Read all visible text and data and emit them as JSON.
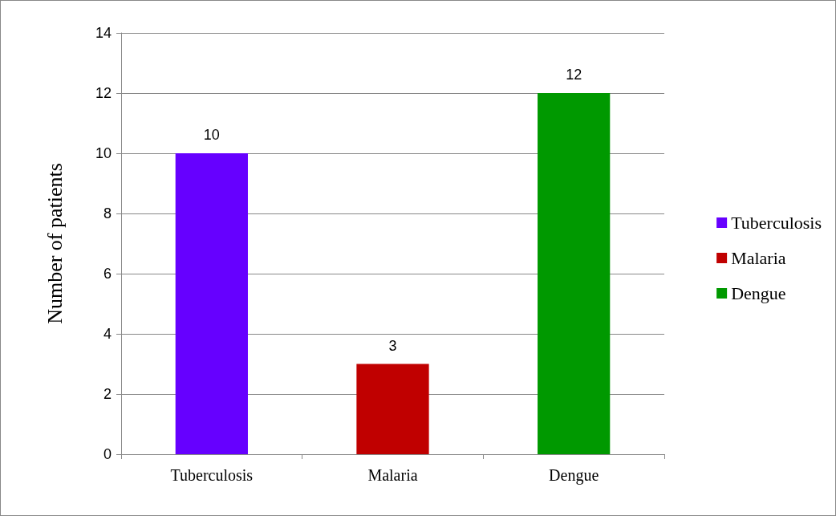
{
  "chart_data": {
    "type": "bar",
    "ylabel": "Number of patients",
    "categories": [
      "Tuberculosis",
      "Malaria",
      "Dengue"
    ],
    "series": [
      {
        "name": "Tuberculosis",
        "color": "#6600ff",
        "values": [
          10,
          null,
          null
        ]
      },
      {
        "name": "Malaria",
        "color": "#c00000",
        "values": [
          null,
          3,
          null
        ]
      },
      {
        "name": "Dengue",
        "color": "#009900",
        "values": [
          null,
          null,
          12
        ]
      }
    ],
    "ylim": [
      0,
      14
    ],
    "yticks": [
      0,
      2,
      4,
      6,
      8,
      10,
      12,
      14
    ],
    "grid": "y",
    "legend": "right",
    "data_labels": true
  }
}
